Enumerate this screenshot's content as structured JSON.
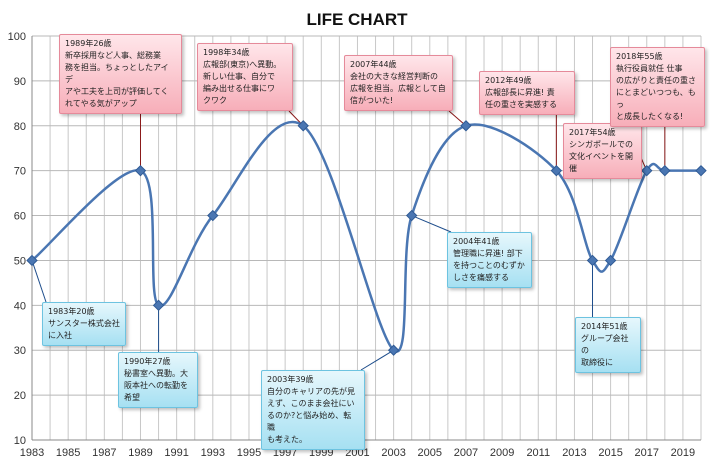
{
  "chart_data": {
    "type": "line",
    "title": "LIFE CHART",
    "x_ticks": [
      "1983",
      "1985",
      "1987",
      "1989",
      "1991",
      "1993",
      "1995",
      "1997",
      "1999",
      "2001",
      "2003",
      "2005",
      "2007",
      "2009",
      "2011",
      "2013",
      "2015",
      "2017",
      "2019"
    ],
    "y_ticks": [
      10,
      20,
      30,
      40,
      50,
      60,
      70,
      80,
      90,
      100
    ],
    "xlim": [
      1983,
      2020
    ],
    "ylim": [
      10,
      100
    ],
    "grid": true,
    "series": [
      {
        "color": "#4a76b2",
        "points": [
          {
            "x": 1983,
            "y": 50
          },
          {
            "x": 1989,
            "y": 70
          },
          {
            "x": 1990,
            "y": 40
          },
          {
            "x": 1993,
            "y": 60
          },
          {
            "x": 1998,
            "y": 80
          },
          {
            "x": 2003,
            "y": 30
          },
          {
            "x": 2004,
            "y": 60
          },
          {
            "x": 2007,
            "y": 80
          },
          {
            "x": 2012,
            "y": 70
          },
          {
            "x": 2014,
            "y": 50
          },
          {
            "x": 2015,
            "y": 50
          },
          {
            "x": 2017,
            "y": 70
          },
          {
            "x": 2018,
            "y": 70
          },
          {
            "x": 2020,
            "y": 70
          }
        ]
      }
    ],
    "annotations": [
      {
        "id": "a1983",
        "year": 1983,
        "value": 50,
        "style": "blue",
        "text": "1983年20歳\nサンスター株式会社\nに入社"
      },
      {
        "id": "a1989",
        "year": 1989,
        "value": 70,
        "style": "pink",
        "text": "1989年26歳\n新卒採用など人事、総務業\n務を担当。ちょっとしたアイデ\nアや工夫を上司が評価してく\nれてやる気がアップ"
      },
      {
        "id": "a1990",
        "year": 1990,
        "value": 40,
        "style": "blue",
        "text": "1990年27歳\n秘書室へ異動。大\n阪本社への転勤を\n希望"
      },
      {
        "id": "a1998",
        "year": 1998,
        "value": 80,
        "style": "pink",
        "text": "1998年34歳\n広報部(東京)へ異動。\n新しい仕事、自分で\n編み出せる仕事にワ\nクワク"
      },
      {
        "id": "a2003",
        "year": 2003,
        "value": 30,
        "style": "blue",
        "text": "2003年39歳\n自分のキャリアの先が見\nえず、このまま会社にい\nるのか?と悩み始め、転職\nも考えた。"
      },
      {
        "id": "a2004",
        "year": 2004,
        "value": 60,
        "style": "blue",
        "text": "2004年41歳\n管理職に昇進! 部下\nを持つことのむずか\nしさを痛感する"
      },
      {
        "id": "a2007",
        "year": 2007,
        "value": 80,
        "style": "pink",
        "text": "2007年44歳\n会社の大きな経営判断の\n広報を担当。広報として自\n信がついた!"
      },
      {
        "id": "a2012",
        "year": 2012,
        "value": 70,
        "style": "pink",
        "text": "2012年49歳\n広報部長に昇進! 責\n任の重さを実感する"
      },
      {
        "id": "a2014",
        "year": 2014,
        "value": 50,
        "style": "blue",
        "text": "2014年51歳\nグループ会社の\n取締役に"
      },
      {
        "id": "a2017",
        "year": 2017,
        "value": 70,
        "style": "pink",
        "text": "2017年54歳\nシンガポールでの\n文化イベントを開催"
      },
      {
        "id": "a2018",
        "year": 2018,
        "value": 70,
        "style": "pink",
        "text": "2018年55歳\n執行役員就任 仕事\nの広がりと責任の重さ\nにとまどいつつも、もっ\nと成長したくなる!"
      }
    ]
  }
}
